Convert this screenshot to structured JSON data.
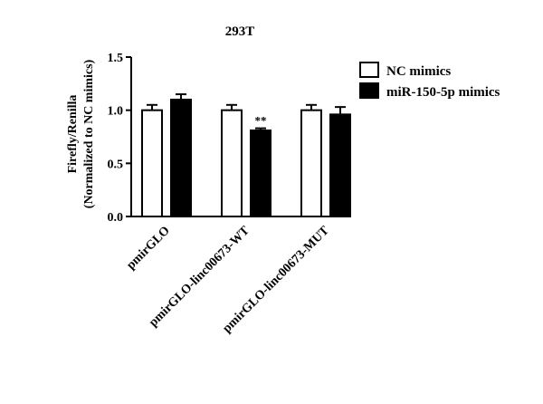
{
  "chart_data": {
    "type": "bar",
    "title": "293T",
    "ylabel_lines": [
      "Firefly/Renilla",
      "(Normalized to NC mimics)"
    ],
    "categories": [
      "pmirGLO",
      "pmirGLO-linc00673-WT",
      "pmirGLO-linc00673-MUT"
    ],
    "series": [
      {
        "name": "NC mimics",
        "color": "#ffffff",
        "values": [
          1.0,
          1.0,
          1.0
        ],
        "errors": [
          0.05,
          0.05,
          0.05
        ]
      },
      {
        "name": "miR-150-5p mimics",
        "color": "#000000",
        "values": [
          1.1,
          0.81,
          0.96
        ],
        "errors": [
          0.05,
          0.02,
          0.07
        ]
      }
    ],
    "annotations": [
      {
        "category_index": 1,
        "series_index": 1,
        "text": "**"
      }
    ],
    "yticks": [
      "0.0",
      "0.5",
      "1.0",
      "1.5"
    ],
    "ylim": [
      0,
      1.5
    ],
    "grid": false,
    "legend_position": "top-right"
  }
}
